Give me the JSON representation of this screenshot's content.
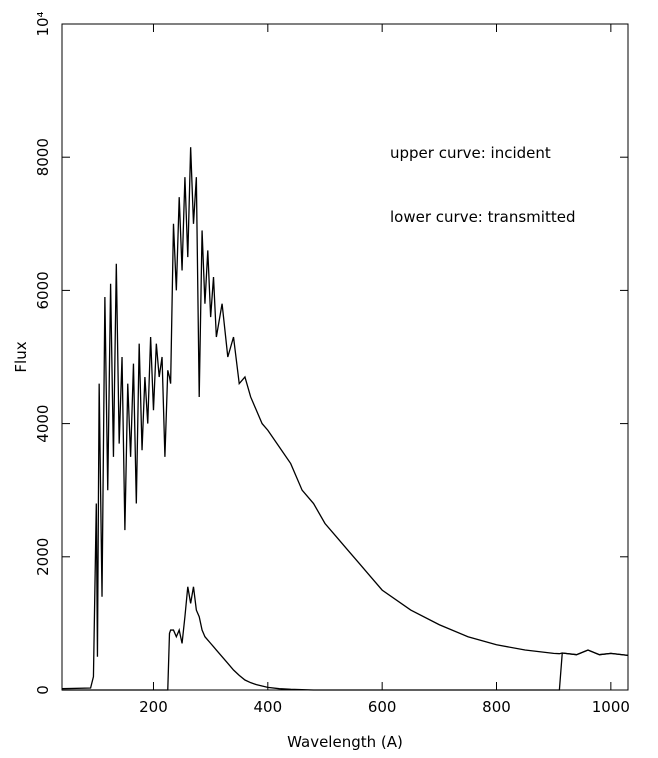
{
  "chart_data": {
    "type": "line",
    "xlabel": "Wavelength (A)",
    "ylabel": "Flux",
    "annotations": [
      "upper curve: incident",
      "lower curve: transmitted"
    ],
    "x": [
      40,
      90,
      95,
      100,
      102,
      105,
      110,
      115,
      120,
      125,
      130,
      135,
      140,
      145,
      150,
      155,
      160,
      165,
      170,
      175,
      180,
      185,
      190,
      195,
      200,
      205,
      210,
      215,
      220,
      225,
      228,
      230,
      235,
      240,
      245,
      250,
      255,
      260,
      265,
      270,
      275,
      280,
      285,
      290,
      295,
      300,
      305,
      310,
      320,
      330,
      340,
      350,
      360,
      370,
      380,
      390,
      400,
      420,
      440,
      460,
      480,
      500,
      520,
      540,
      560,
      580,
      600,
      650,
      700,
      750,
      800,
      850,
      900,
      910,
      915,
      940,
      960,
      980,
      1000,
      1030
    ],
    "series": [
      {
        "name": "incident",
        "color": "#000000",
        "values": [
          20,
          30,
          200,
          2800,
          500,
          4600,
          1400,
          5900,
          3000,
          6100,
          3500,
          6400,
          3700,
          5000,
          2400,
          4600,
          3500,
          4900,
          2800,
          5200,
          3600,
          4700,
          4000,
          5300,
          4200,
          5200,
          4700,
          5000,
          3500,
          4800,
          4700,
          4600,
          7000,
          6000,
          7400,
          6300,
          7700,
          6500,
          8150,
          7000,
          7700,
          4400,
          6900,
          5800,
          6600,
          5600,
          6200,
          5300,
          5800,
          5000,
          5300,
          4600,
          4700,
          4400,
          4200,
          4000,
          3900,
          3650,
          3400,
          3000,
          2800,
          2500,
          2300,
          2100,
          1900,
          1700,
          1500,
          1200,
          980,
          800,
          680,
          600,
          550,
          545,
          555,
          530,
          600,
          530,
          550,
          520
        ]
      },
      {
        "name": "transmitted",
        "color": "#000000",
        "values": [
          0,
          0,
          0,
          0,
          0,
          0,
          0,
          0,
          0,
          0,
          0,
          0,
          0,
          0,
          0,
          0,
          0,
          0,
          0,
          0,
          0,
          0,
          0,
          0,
          0,
          0,
          0,
          0,
          0,
          0,
          850,
          900,
          900,
          800,
          900,
          700,
          1100,
          1550,
          1300,
          1550,
          1200,
          1100,
          900,
          800,
          750,
          700,
          650,
          600,
          500,
          400,
          300,
          220,
          150,
          110,
          80,
          60,
          40,
          20,
          10,
          5,
          0,
          0,
          0,
          0,
          0,
          0,
          0,
          0,
          0,
          0,
          0,
          0,
          0,
          0,
          555,
          530,
          600,
          530,
          550,
          520
        ]
      }
    ],
    "xlim": [
      40,
      1030
    ],
    "ylim": [
      0,
      10000
    ],
    "xticks": [
      200,
      400,
      600,
      800,
      1000
    ],
    "yticks": [
      0,
      2000,
      4000,
      6000,
      8000,
      {
        "value": 10000,
        "label": "10⁴"
      }
    ]
  }
}
